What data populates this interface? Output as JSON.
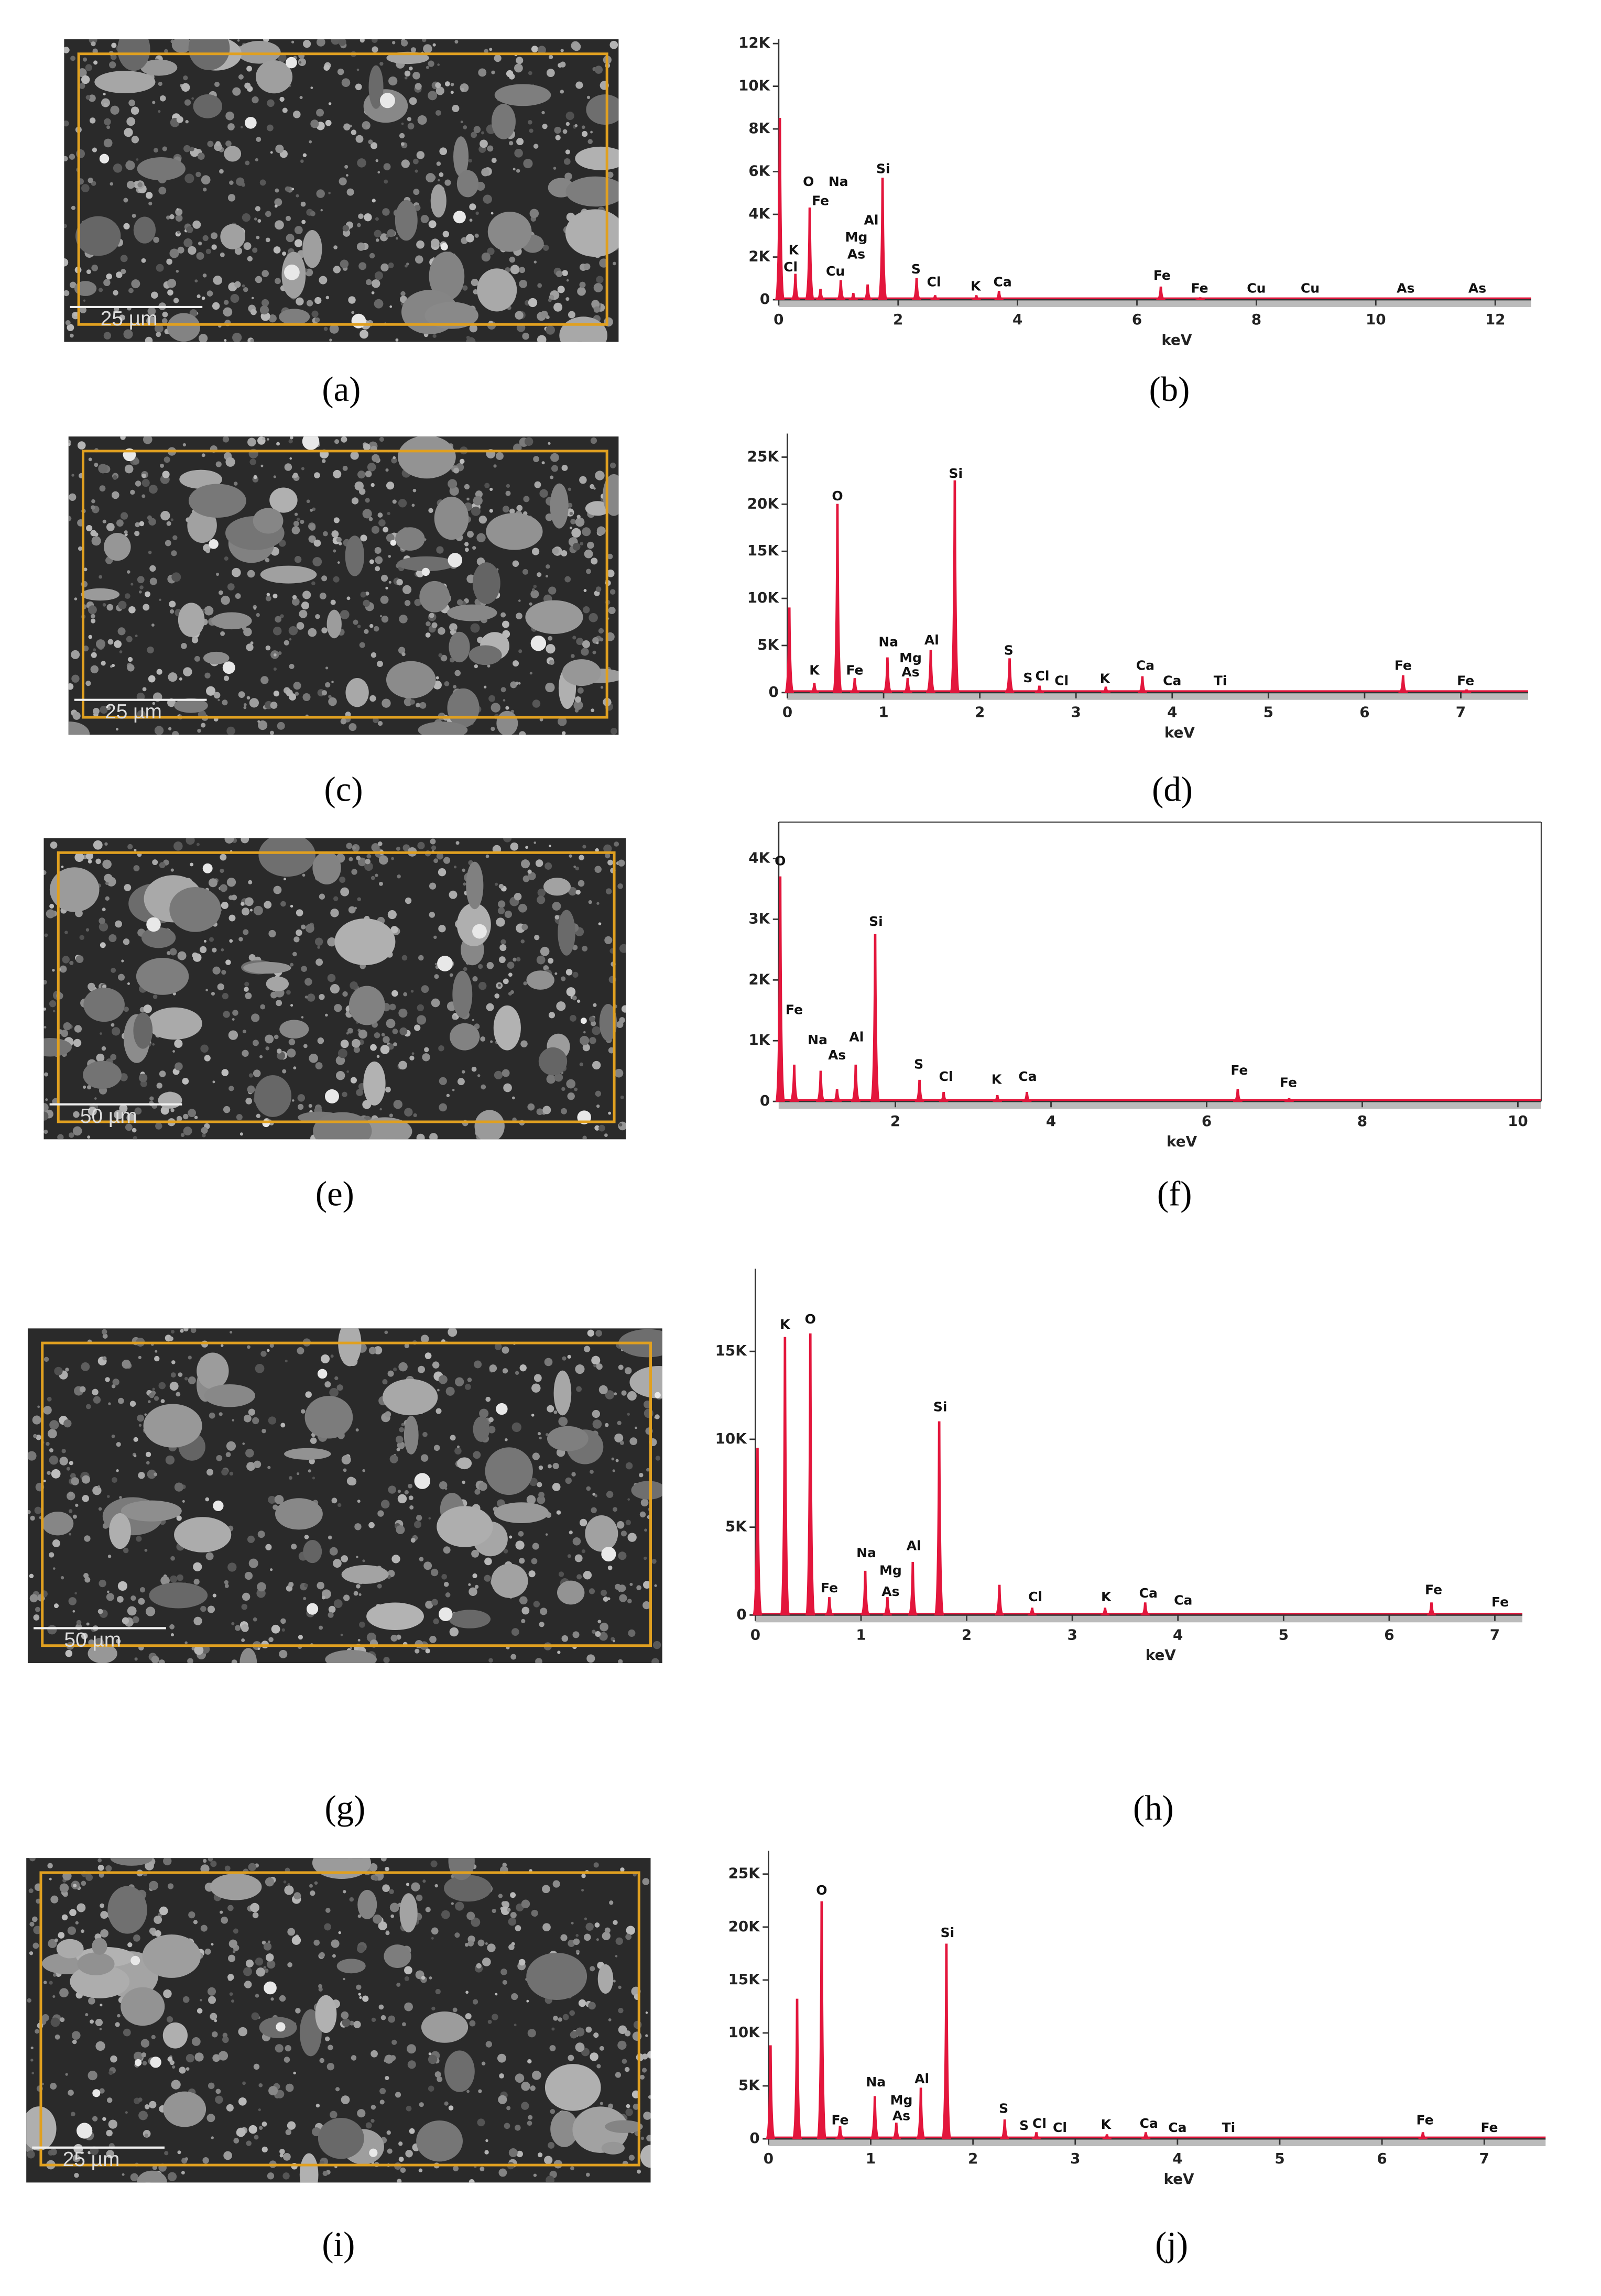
{
  "figures": [
    {
      "image_label": "(a)",
      "scale_bar": "25 µm",
      "chart_label": "(b)"
    },
    {
      "image_label": "(c)",
      "scale_bar": "25 µm",
      "chart_label": "(d)"
    },
    {
      "image_label": "(e)",
      "scale_bar": "50 µm",
      "chart_label": "(f)"
    },
    {
      "image_label": "(g)",
      "scale_bar": "50 µm",
      "chart_label": "(h)"
    },
    {
      "image_label": "(i)",
      "scale_bar": "25 µm",
      "chart_label": "(j)"
    }
  ],
  "chart_data": [
    {
      "type": "spectrum",
      "x_label": "keV",
      "color": "#e3163c",
      "frame": false,
      "xlim": [
        0,
        12.6
      ],
      "ylim": [
        0,
        12200
      ],
      "xticks": [
        0,
        2,
        4,
        6,
        8,
        10,
        12
      ],
      "yticks": [
        0,
        {
          "value": 2000,
          "label": "2K"
        },
        {
          "value": 4000,
          "label": "4K"
        },
        {
          "value": 6000,
          "label": "6K"
        },
        {
          "value": 8000,
          "label": "8K"
        },
        {
          "value": 10000,
          "label": "10K"
        },
        {
          "value": 12000,
          "label": "12K"
        }
      ],
      "x": [
        0.02,
        0.28,
        0.52,
        0.7,
        1.04,
        1.25,
        1.49,
        1.74,
        2.31,
        2.62,
        3.31,
        3.69,
        6.4,
        7.06
      ],
      "values": [
        8500,
        1200,
        4300,
        500,
        900,
        300,
        700,
        5700,
        1000,
        200,
        200,
        400,
        600,
        100
      ],
      "annotations": [
        {
          "text": "K",
          "x": 0.25,
          "y": 2300
        },
        {
          "text": "Cl",
          "x": 0.2,
          "y": 1500
        },
        {
          "text": "O",
          "x": 0.5,
          "y": 5500
        },
        {
          "text": "Na",
          "x": 1.0,
          "y": 5500
        },
        {
          "text": "Fe",
          "x": 0.7,
          "y": 4600
        },
        {
          "text": "Mg",
          "x": 1.3,
          "y": 2900
        },
        {
          "text": "Al",
          "x": 1.55,
          "y": 3700
        },
        {
          "text": "As",
          "x": 1.3,
          "y": 2100
        },
        {
          "text": "Cu",
          "x": 0.95,
          "y": 1300
        },
        {
          "text": "Si",
          "x": 1.75,
          "y": 6100
        },
        {
          "text": "S",
          "x": 2.3,
          "y": 1400
        },
        {
          "text": "Cl",
          "x": 2.6,
          "y": 800
        },
        {
          "text": "K",
          "x": 3.3,
          "y": 600
        },
        {
          "text": "Ca",
          "x": 3.75,
          "y": 800
        },
        {
          "text": "Fe",
          "x": 6.42,
          "y": 1100
        },
        {
          "text": "Fe",
          "x": 7.05,
          "y": 500
        },
        {
          "text": "Cu",
          "x": 8.0,
          "y": 500
        },
        {
          "text": "Cu",
          "x": 8.9,
          "y": 500
        },
        {
          "text": "As",
          "x": 10.5,
          "y": 500
        },
        {
          "text": "As",
          "x": 11.7,
          "y": 500
        }
      ]
    },
    {
      "type": "spectrum",
      "x_label": "keV",
      "color": "#e3163c",
      "frame": false,
      "xlim": [
        0,
        7.7
      ],
      "ylim": [
        0,
        27500
      ],
      "xticks": [
        0,
        1,
        2,
        3,
        4,
        5,
        6,
        7
      ],
      "yticks": [
        0,
        {
          "value": 5000,
          "label": "5K"
        },
        {
          "value": 10000,
          "label": "10K"
        },
        {
          "value": 15000,
          "label": "15K"
        },
        {
          "value": 20000,
          "label": "20K"
        },
        {
          "value": 25000,
          "label": "25K"
        }
      ],
      "x": [
        0.02,
        0.28,
        0.52,
        0.7,
        1.04,
        1.25,
        1.49,
        1.74,
        2.31,
        2.62,
        3.31,
        3.69,
        6.4,
        7.06
      ],
      "values": [
        9000,
        1000,
        20000,
        1500,
        3700,
        1500,
        4500,
        22500,
        3600,
        700,
        600,
        1700,
        1800,
        300
      ],
      "annotations": [
        {
          "text": "K",
          "x": 0.28,
          "y": 2300
        },
        {
          "text": "Fe",
          "x": 0.7,
          "y": 2300
        },
        {
          "text": "O",
          "x": 0.52,
          "y": 20800
        },
        {
          "text": "Na",
          "x": 1.05,
          "y": 5300
        },
        {
          "text": "Mg",
          "x": 1.28,
          "y": 3600
        },
        {
          "text": "As",
          "x": 1.28,
          "y": 2100
        },
        {
          "text": "Al",
          "x": 1.5,
          "y": 5500
        },
        {
          "text": "Si",
          "x": 1.75,
          "y": 23200
        },
        {
          "text": "S",
          "x": 2.3,
          "y": 4400
        },
        {
          "text": "S",
          "x": 2.5,
          "y": 1500
        },
        {
          "text": "Cl",
          "x": 2.65,
          "y": 1700
        },
        {
          "text": "Cl",
          "x": 2.85,
          "y": 1200
        },
        {
          "text": "K",
          "x": 3.3,
          "y": 1400
        },
        {
          "text": "Ca",
          "x": 3.72,
          "y": 2800
        },
        {
          "text": "Ca",
          "x": 4.0,
          "y": 1200
        },
        {
          "text": "Ti",
          "x": 4.5,
          "y": 1200
        },
        {
          "text": "Fe",
          "x": 6.4,
          "y": 2800
        },
        {
          "text": "Fe",
          "x": 7.05,
          "y": 1200
        }
      ]
    },
    {
      "type": "spectrum",
      "x_label": "keV",
      "color": "#e3163c",
      "frame": true,
      "xlim": [
        0.5,
        10.3
      ],
      "ylim": [
        0,
        4600
      ],
      "xticks": [
        2,
        4,
        6,
        8,
        10
      ],
      "yticks": [
        0,
        {
          "value": 1000,
          "label": "1K"
        },
        {
          "value": 2000,
          "label": "2K"
        },
        {
          "value": 3000,
          "label": "3K"
        },
        {
          "value": 4000,
          "label": "4K"
        }
      ],
      "x": [
        0.52,
        0.7,
        1.04,
        1.25,
        1.49,
        1.74,
        2.31,
        2.62,
        3.31,
        3.69,
        6.4,
        7.06
      ],
      "values": [
        3700,
        600,
        500,
        200,
        600,
        2750,
        350,
        150,
        100,
        150,
        200,
        50
      ],
      "annotations": [
        {
          "text": "O",
          "x": 0.52,
          "y": 3950
        },
        {
          "text": "Fe",
          "x": 0.7,
          "y": 1500
        },
        {
          "text": "Na",
          "x": 1.0,
          "y": 1000
        },
        {
          "text": "As",
          "x": 1.25,
          "y": 750
        },
        {
          "text": "Al",
          "x": 1.5,
          "y": 1050
        },
        {
          "text": "Si",
          "x": 1.75,
          "y": 2950
        },
        {
          "text": "S",
          "x": 2.3,
          "y": 600
        },
        {
          "text": "Cl",
          "x": 2.65,
          "y": 400
        },
        {
          "text": "K",
          "x": 3.3,
          "y": 350
        },
        {
          "text": "Ca",
          "x": 3.7,
          "y": 400
        },
        {
          "text": "Fe",
          "x": 6.42,
          "y": 500
        },
        {
          "text": "Fe",
          "x": 7.05,
          "y": 300
        }
      ]
    },
    {
      "type": "spectrum",
      "x_label": "keV",
      "color": "#e3163c",
      "frame": false,
      "xlim": [
        0,
        7.26
      ],
      "ylim": [
        0,
        19700
      ],
      "xticks": [
        0,
        1,
        2,
        3,
        4,
        5,
        6,
        7
      ],
      "yticks": [
        0,
        {
          "value": 5000,
          "label": "5K"
        },
        {
          "value": 10000,
          "label": "10K"
        },
        {
          "value": 15000,
          "label": "15K"
        }
      ],
      "x": [
        0.02,
        0.28,
        0.52,
        0.7,
        1.04,
        1.25,
        1.49,
        1.74,
        2.31,
        2.62,
        3.31,
        3.69,
        6.4
      ],
      "values": [
        9500,
        15800,
        16000,
        1000,
        2500,
        1000,
        3000,
        11000,
        1700,
        400,
        400,
        700,
        700
      ],
      "annotations": [
        {
          "text": "K",
          "x": 0.28,
          "y": 16500
        },
        {
          "text": "O",
          "x": 0.52,
          "y": 16800
        },
        {
          "text": "Fe",
          "x": 0.7,
          "y": 1500
        },
        {
          "text": "Na",
          "x": 1.05,
          "y": 3500
        },
        {
          "text": "Mg",
          "x": 1.28,
          "y": 2500
        },
        {
          "text": "As",
          "x": 1.28,
          "y": 1300
        },
        {
          "text": "Al",
          "x": 1.5,
          "y": 3900
        },
        {
          "text": "Si",
          "x": 1.75,
          "y": 11800
        },
        {
          "text": "Cl",
          "x": 2.65,
          "y": 1000
        },
        {
          "text": "K",
          "x": 3.32,
          "y": 1000
        },
        {
          "text": "Ca",
          "x": 3.72,
          "y": 1200
        },
        {
          "text": "Ca",
          "x": 4.05,
          "y": 800
        },
        {
          "text": "Fe",
          "x": 6.42,
          "y": 1400
        },
        {
          "text": "Fe",
          "x": 7.05,
          "y": 700
        }
      ]
    },
    {
      "type": "spectrum",
      "x_label": "keV",
      "color": "#e3163c",
      "frame": false,
      "xlim": [
        0,
        7.6
      ],
      "ylim": [
        0,
        27200
      ],
      "xticks": [
        0,
        1,
        2,
        3,
        4,
        5,
        6,
        7
      ],
      "yticks": [
        0,
        {
          "value": 5000,
          "label": "5K"
        },
        {
          "value": 10000,
          "label": "10K"
        },
        {
          "value": 15000,
          "label": "15K"
        },
        {
          "value": 20000,
          "label": "20K"
        },
        {
          "value": 25000,
          "label": "25K"
        }
      ],
      "x": [
        0.02,
        0.28,
        0.52,
        0.7,
        1.04,
        1.25,
        1.49,
        1.74,
        2.31,
        2.62,
        3.31,
        3.69,
        6.4
      ],
      "values": [
        8800,
        13200,
        22400,
        1200,
        4000,
        1500,
        4800,
        18400,
        1800,
        600,
        400,
        600,
        600
      ],
      "annotations": [
        {
          "text": "O",
          "x": 0.52,
          "y": 23400
        },
        {
          "text": "Fe",
          "x": 0.7,
          "y": 1700
        },
        {
          "text": "Na",
          "x": 1.05,
          "y": 5300
        },
        {
          "text": "Mg",
          "x": 1.3,
          "y": 3600
        },
        {
          "text": "As",
          "x": 1.3,
          "y": 2100
        },
        {
          "text": "Al",
          "x": 1.5,
          "y": 5600
        },
        {
          "text": "Si",
          "x": 1.75,
          "y": 19400
        },
        {
          "text": "S",
          "x": 2.3,
          "y": 2800
        },
        {
          "text": "S",
          "x": 2.5,
          "y": 1200
        },
        {
          "text": "Cl",
          "x": 2.65,
          "y": 1400
        },
        {
          "text": "Cl",
          "x": 2.85,
          "y": 1000
        },
        {
          "text": "K",
          "x": 3.3,
          "y": 1300
        },
        {
          "text": "Ca",
          "x": 3.72,
          "y": 1400
        },
        {
          "text": "Ca",
          "x": 4.0,
          "y": 1000
        },
        {
          "text": "Ti",
          "x": 4.5,
          "y": 1000
        },
        {
          "text": "Fe",
          "x": 6.42,
          "y": 1700
        },
        {
          "text": "Fe",
          "x": 7.05,
          "y": 1000
        }
      ]
    }
  ]
}
